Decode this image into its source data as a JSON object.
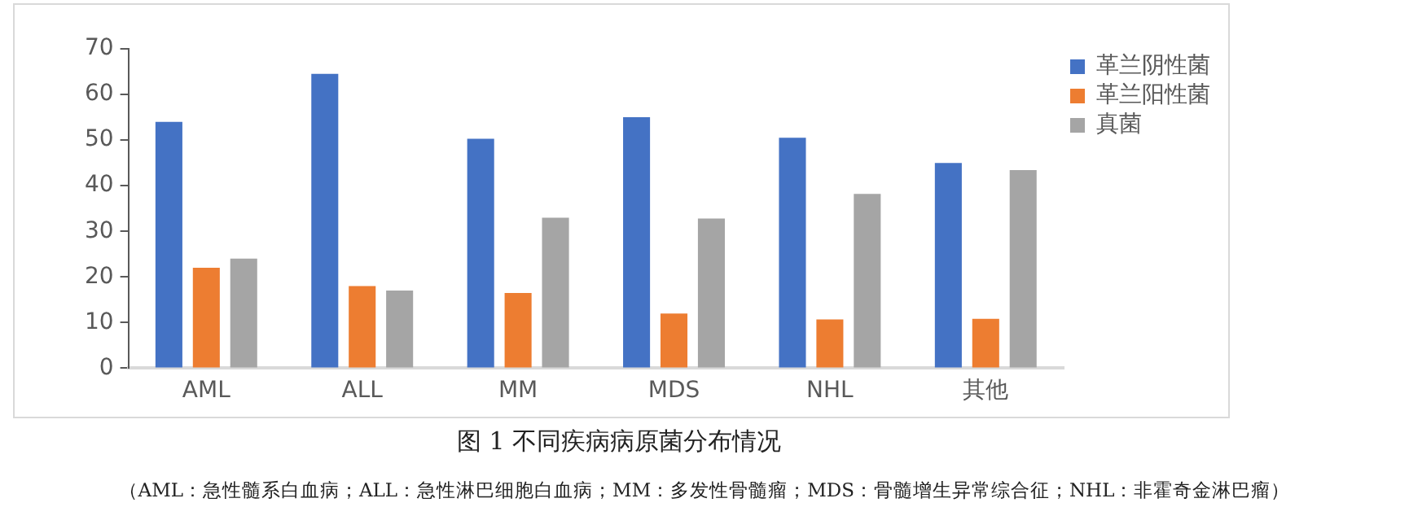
{
  "chart_data": {
    "type": "bar",
    "title": "图 1 不同疾病病原菌分布情况",
    "annotations": [
      "（AML：急性髓系白血病；ALL：急性淋巴细胞白血病；MM：多发性骨髓瘤；MDS：骨髓增生异常综合征；NHL：非霍奇金淋巴瘤）"
    ],
    "categories": [
      "AML",
      "ALL",
      "MM",
      "MDS",
      "NHL",
      "其他"
    ],
    "series": [
      {
        "name": "革兰阴性菌",
        "color": "#4472c4",
        "values": [
          54,
          64.5,
          50.3,
          55,
          50.5,
          45
        ]
      },
      {
        "name": "革兰阳性菌",
        "color": "#ed7d31",
        "values": [
          22,
          18,
          16.5,
          12,
          10.7,
          10.8
        ]
      },
      {
        "name": "真菌",
        "color": "#a5a5a5",
        "values": [
          24,
          17,
          33,
          32.8,
          38.2,
          43.4
        ]
      }
    ],
    "ylim": [
      0,
      70
    ],
    "yticks": [
      0,
      10,
      20,
      30,
      40,
      50,
      60,
      70
    ],
    "grid": false,
    "legend": "top right"
  }
}
